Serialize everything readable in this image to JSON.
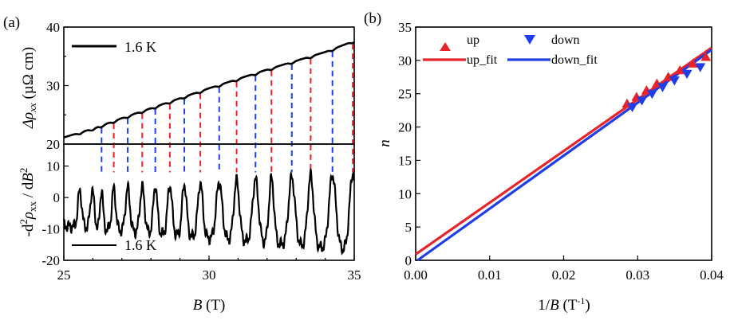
{
  "panels": {
    "a_label": "(a)",
    "b_label": "(b)"
  },
  "colors": {
    "up": "#e8242a",
    "down": "#1f3de8",
    "trace": "#000000",
    "up_marker": "#e8242a",
    "down_marker": "#1f3de8"
  },
  "chart_data": [
    {
      "type": "line",
      "panel": "(a) top",
      "ylabel_main": "Δρ",
      "ylabel_sub": "xx",
      "ylabel_unit": " (µΩ cm)",
      "xlim": [
        25,
        35
      ],
      "ylim": [
        20,
        40
      ],
      "yticks": [
        "20",
        "30",
        "40"
      ],
      "legend": "1.6 K",
      "series": [
        {
          "name": "1.6 K",
          "x": [
            25,
            26,
            27,
            28,
            29,
            30,
            31,
            32,
            33,
            34,
            35
          ],
          "y": [
            21.0,
            22.5,
            24.3,
            26.0,
            27.7,
            29.4,
            31.0,
            32.6,
            34.1,
            35.6,
            37.5
          ]
        }
      ],
      "red_markers_B": [
        26.72,
        27.7,
        28.65,
        29.7,
        30.95,
        32.15,
        33.5,
        34.95
      ],
      "blue_markers_B": [
        26.3,
        27.2,
        28.15,
        29.15,
        30.35,
        31.6,
        32.85,
        34.25
      ],
      "oscillation_amplitude": 0.35
    },
    {
      "type": "line",
      "panel": "(a) bottom",
      "ylabel": "-d²ρxx / dB²",
      "ylabel_parts": [
        "-d",
        "2",
        "ρ",
        "xx",
        " / d",
        "B",
        "2"
      ],
      "xlabel_italic": "B",
      "xlabel_rest": " (T)",
      "xlim": [
        25,
        35
      ],
      "ylim": [
        -20,
        17
      ],
      "xticks": [
        "25",
        "30",
        "35"
      ],
      "yticks": [
        "-20",
        "-10",
        "0",
        "10"
      ],
      "legend": "1.6 K",
      "series": [
        {
          "name": "1.6 K",
          "description_peaks_B": [
            25.55,
            25.98,
            26.3,
            26.72,
            27.2,
            27.7,
            28.15,
            28.65,
            29.15,
            29.7,
            30.35,
            30.95,
            31.6,
            32.15,
            32.85,
            33.5,
            34.25,
            34.95
          ]
        }
      ],
      "amplitude_range": [
        7,
        16
      ],
      "trough_level": [
        -9,
        -17
      ]
    },
    {
      "type": "scatter",
      "panel": "(b)",
      "xlabel": "1/B (T⁻¹)",
      "xlabel_parts": [
        "1/",
        "B",
        " (T",
        "-1",
        ")"
      ],
      "ylabel": "n",
      "xlim": [
        0.0,
        0.04
      ],
      "ylim": [
        0,
        35
      ],
      "xticks": [
        "0.00",
        "0.01",
        "0.02",
        "0.03",
        "0.04"
      ],
      "yticks": [
        "0",
        "5",
        "10",
        "15",
        "20",
        "25",
        "30",
        "35"
      ],
      "series": [
        {
          "name": "up",
          "marker": "triangle-up",
          "x": [
            0.02857,
            0.02985,
            0.0312,
            0.0326,
            0.03413,
            0.03571,
            0.03745,
            0.03922
          ],
          "y": [
            23.5,
            24.5,
            25.5,
            26.5,
            27.5,
            28.5,
            29.5,
            30.5
          ]
        },
        {
          "name": "down",
          "marker": "triangle-down",
          "x": [
            0.02928,
            0.03058,
            0.03195,
            0.03337,
            0.03497,
            0.03666,
            0.03846
          ],
          "y": [
            23,
            24,
            25,
            26,
            27,
            28,
            29
          ]
        },
        {
          "name": "up_fit",
          "x": [
            0.0,
            0.04
          ],
          "y": [
            0.9,
            31.9
          ]
        },
        {
          "name": "down_fit",
          "x": [
            0.0,
            0.04
          ],
          "y": [
            -0.2,
            31.6
          ]
        }
      ],
      "legend": {
        "placement": "top-left",
        "entries": [
          "up",
          "down",
          "up_fit",
          "down_fit"
        ]
      }
    }
  ]
}
